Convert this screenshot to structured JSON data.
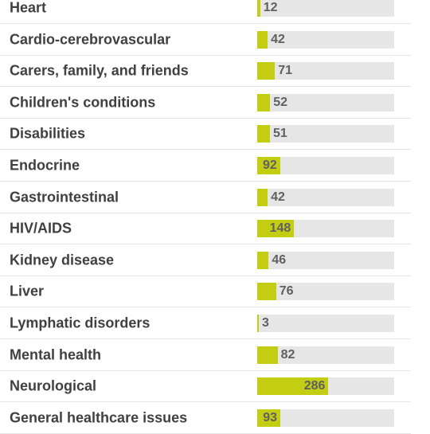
{
  "chart_data": {
    "type": "bar",
    "orientation": "horizontal",
    "categories": [
      "Heart",
      "Cardio-cerebrovascular",
      "Carers, family, and friends",
      "Children's conditions",
      "Disabilities",
      "Endocrine",
      "Gastrointestinal",
      "HIV/AIDS",
      "Kidney disease",
      "Liver",
      "Lymphatic disorders",
      "Mental health",
      "Neurological",
      "General healthcare issues"
    ],
    "values": [
      12,
      42,
      71,
      52,
      51,
      92,
      42,
      148,
      46,
      76,
      3,
      82,
      286,
      93
    ],
    "xlim": [
      0,
      550
    ],
    "colors": {
      "bar": "#c3ce12",
      "track": "#e6e6e6",
      "label": "#404040",
      "value": "#606060",
      "separator": "#e6e6e6"
    }
  }
}
